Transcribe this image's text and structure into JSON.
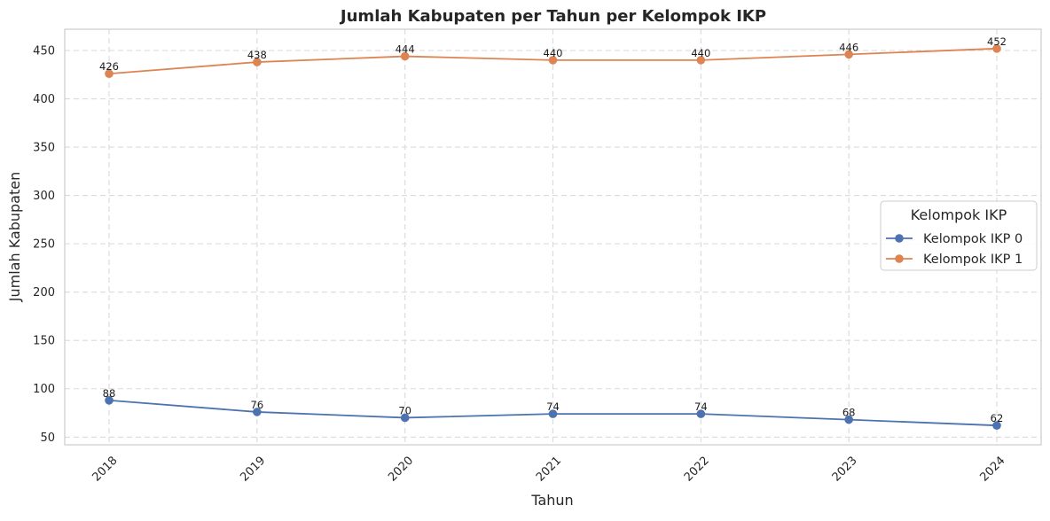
{
  "chart_data": {
    "type": "line",
    "title": "Jumlah Kabupaten per Tahun per Kelompok IKP",
    "xlabel": "Tahun",
    "ylabel": "Jumlah Kabupaten",
    "x": [
      "2018",
      "2019",
      "2020",
      "2021",
      "2022",
      "2023",
      "2024"
    ],
    "y_ticks": [
      50,
      100,
      150,
      200,
      250,
      300,
      350,
      400,
      450
    ],
    "ylim": [
      42,
      472
    ],
    "grid": true,
    "legend": {
      "title": "Kelompok IKP",
      "placement": "center-right"
    },
    "series": [
      {
        "name": "Kelompok IKP 0",
        "color": "#4c72b0",
        "values": [
          88,
          76,
          70,
          74,
          74,
          68,
          62
        ]
      },
      {
        "name": "Kelompok IKP 1",
        "color": "#dd8452",
        "values": [
          426,
          438,
          444,
          440,
          440,
          446,
          452
        ]
      }
    ]
  }
}
